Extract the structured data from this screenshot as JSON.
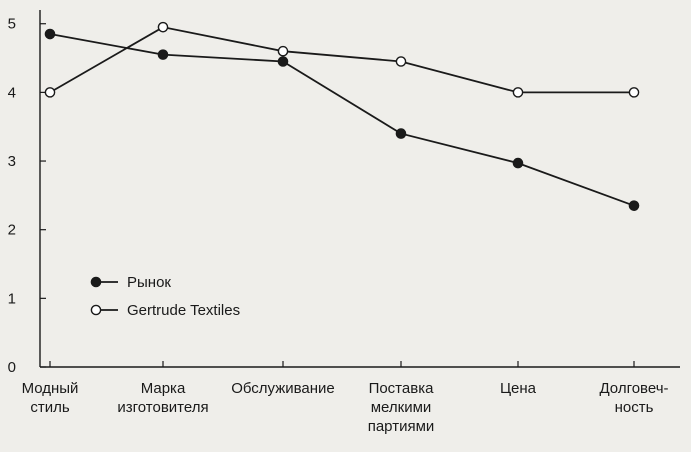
{
  "chart_data": {
    "type": "line",
    "categories": [
      [
        "Модный",
        "стиль"
      ],
      [
        "Марка",
        "изготовителя"
      ],
      [
        "Обслуживание"
      ],
      [
        "Поставка",
        "мелкими",
        "партиями"
      ],
      [
        "Цена"
      ],
      [
        "Долговеч-",
        "ность"
      ]
    ],
    "series": [
      {
        "name": "Рынок",
        "marker": "filled-circle",
        "values": [
          4.85,
          4.55,
          4.45,
          3.4,
          2.97,
          2.35
        ]
      },
      {
        "name": "Gertrude Textiles",
        "marker": "open-circle",
        "values": [
          4.0,
          4.95,
          4.6,
          4.45,
          4.0,
          4.0
        ]
      }
    ],
    "yticks": [
      0,
      1,
      2,
      3,
      4,
      5
    ],
    "ylim": [
      0,
      5.2
    ],
    "grid": false,
    "legend_position": "bottom-left",
    "colors": {
      "line": "#1a1a1a",
      "filled_marker": "#1a1a1a",
      "open_marker_fill": "#ffffff",
      "background": "#efeeea"
    }
  }
}
